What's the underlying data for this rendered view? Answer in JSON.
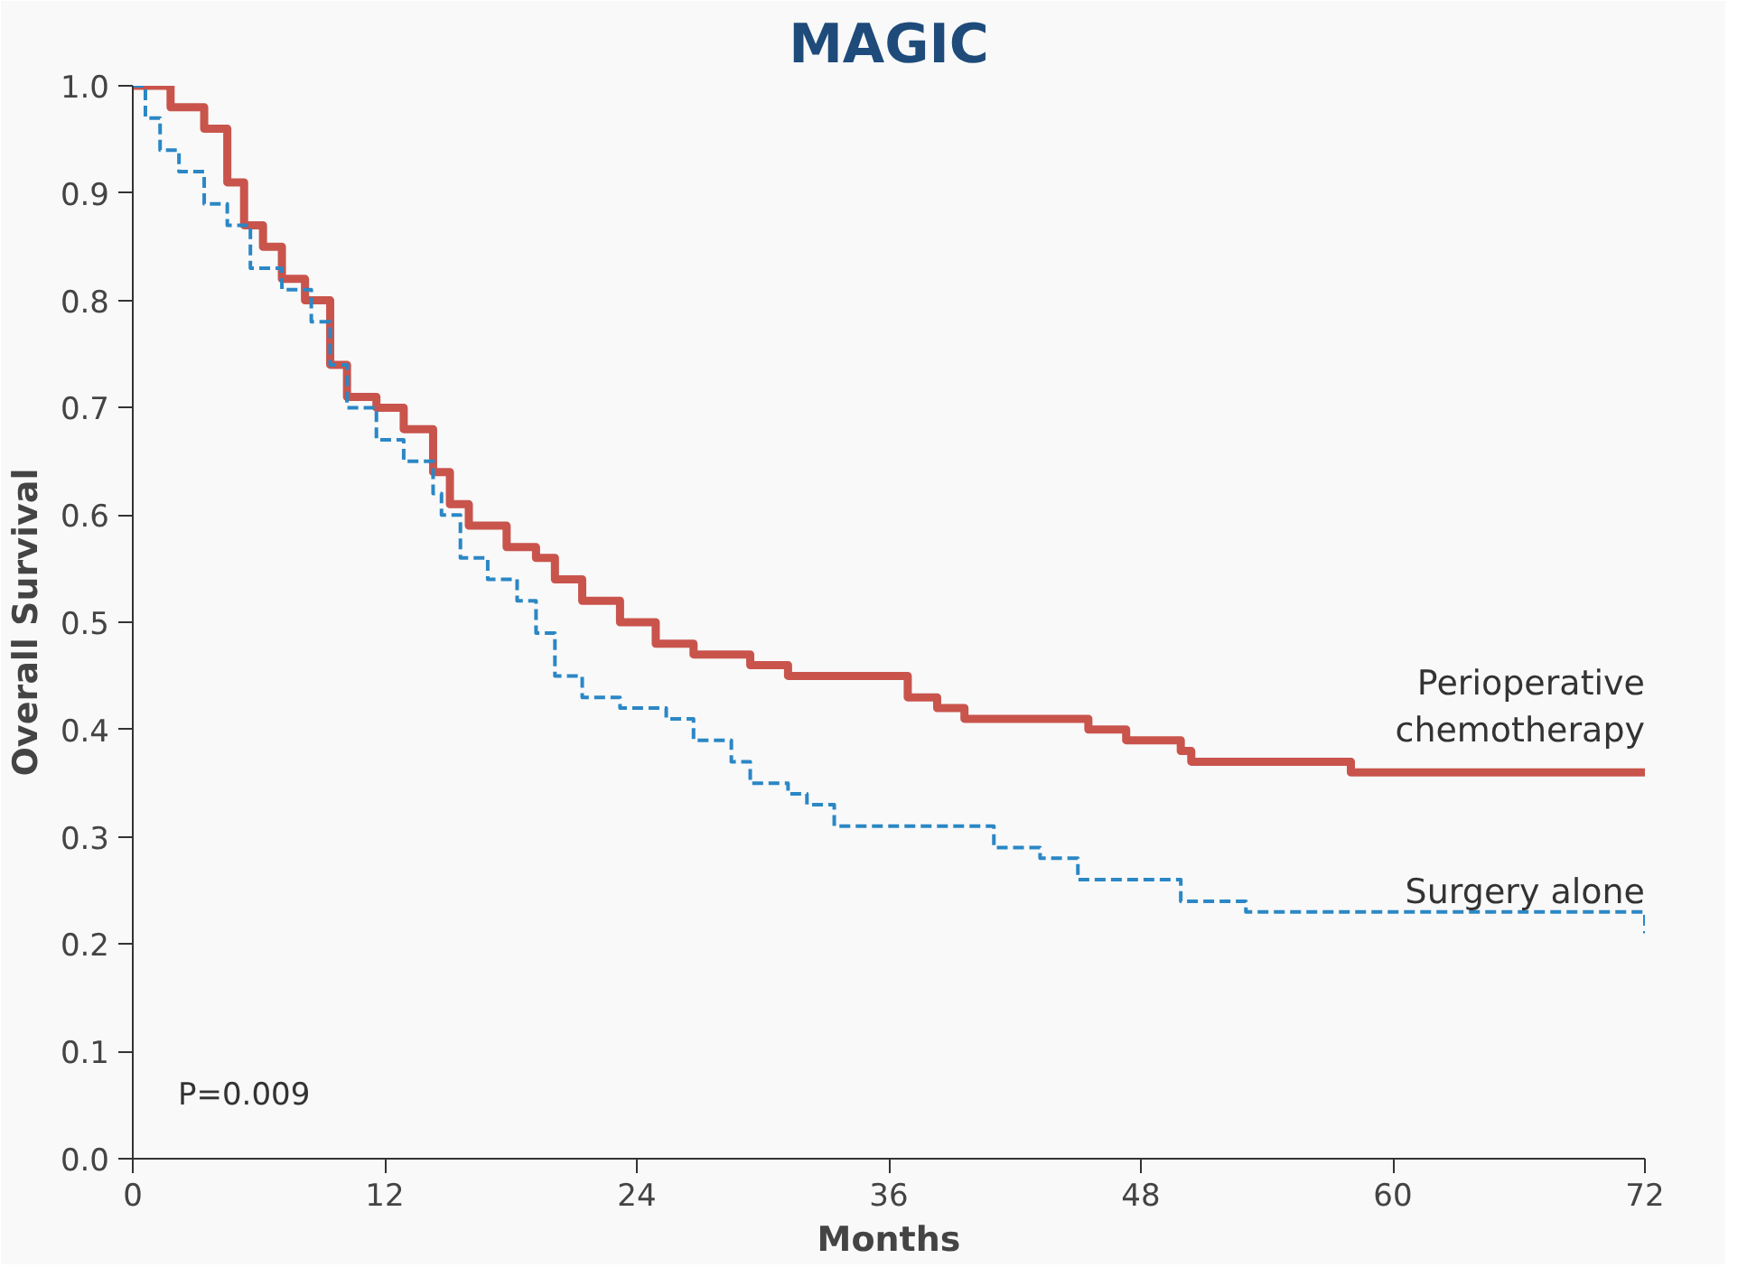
{
  "chart_data": {
    "type": "step",
    "title": "MAGIC",
    "xlabel": "Months",
    "ylabel": "Overall Survival",
    "xlim": [
      0,
      72
    ],
    "ylim": [
      0,
      1
    ],
    "xticks": [
      0,
      12,
      24,
      36,
      48,
      60,
      72
    ],
    "yticks": [
      {
        "value": 0,
        "label": "0.0"
      },
      {
        "value": 0.1,
        "label": "0.1"
      },
      {
        "value": 0.2,
        "label": "0.2"
      },
      {
        "value": 0.3,
        "label": "0.3"
      },
      {
        "value": 0.4,
        "label": "0.4"
      },
      {
        "value": 0.5,
        "label": "0.5"
      },
      {
        "value": 0.6,
        "label": "0.6"
      },
      {
        "value": 0.7,
        "label": "0.7"
      },
      {
        "value": 0.8,
        "label": "0.8"
      },
      {
        "value": 0.9,
        "label": "0.9"
      },
      {
        "value": 1,
        "label": "1.0"
      }
    ],
    "grid": false,
    "marker": "none",
    "annotations": [
      "P=0.009"
    ],
    "series": [
      {
        "name": "Perioperative chemotherapy",
        "color": "#c9544c",
        "line_style": "solid",
        "x": [
          0,
          0.9,
          1.8,
          2.9,
          3.4,
          4.5,
          5.3,
          6.2,
          7.1,
          8.2,
          9.4,
          10.2,
          11.6,
          12.9,
          14.3,
          15.1,
          16.0,
          17.8,
          19.2,
          20.1,
          21.4,
          23.2,
          24.9,
          26.7,
          29.4,
          31.2,
          32.9,
          36.9,
          38.3,
          39.6,
          45.5,
          47.3,
          49.9,
          50.4,
          58.0,
          72
        ],
        "values": [
          1.0,
          1.0,
          0.98,
          0.98,
          0.96,
          0.91,
          0.87,
          0.85,
          0.82,
          0.8,
          0.74,
          0.71,
          0.7,
          0.68,
          0.64,
          0.61,
          0.59,
          0.57,
          0.56,
          0.54,
          0.52,
          0.5,
          0.48,
          0.47,
          0.46,
          0.45,
          0.45,
          0.43,
          0.42,
          0.41,
          0.4,
          0.39,
          0.38,
          0.37,
          0.36,
          0.36
        ]
      },
      {
        "name": "Surgery alone",
        "color": "#2b87c5",
        "line_style": "dashed",
        "x": [
          0,
          0.6,
          1.3,
          2.2,
          3.4,
          4.5,
          5.6,
          7.1,
          8.5,
          9.4,
          10.2,
          11.6,
          12.9,
          14.3,
          14.7,
          15.6,
          16.9,
          18.3,
          19.2,
          20.1,
          21.4,
          23.2,
          25.4,
          26.7,
          28.5,
          29.4,
          31.2,
          32.1,
          33.4,
          35.2,
          39.2,
          41.0,
          43.2,
          45.0,
          49.9,
          52.6,
          53.0,
          71.7,
          72
        ],
        "values": [
          1.0,
          0.97,
          0.94,
          0.92,
          0.89,
          0.87,
          0.83,
          0.81,
          0.78,
          0.74,
          0.7,
          0.67,
          0.65,
          0.62,
          0.6,
          0.56,
          0.54,
          0.52,
          0.49,
          0.45,
          0.43,
          0.42,
          0.41,
          0.39,
          0.37,
          0.35,
          0.34,
          0.33,
          0.31,
          0.31,
          0.31,
          0.29,
          0.28,
          0.26,
          0.24,
          0.24,
          0.23,
          0.23,
          0.21
        ]
      }
    ]
  }
}
